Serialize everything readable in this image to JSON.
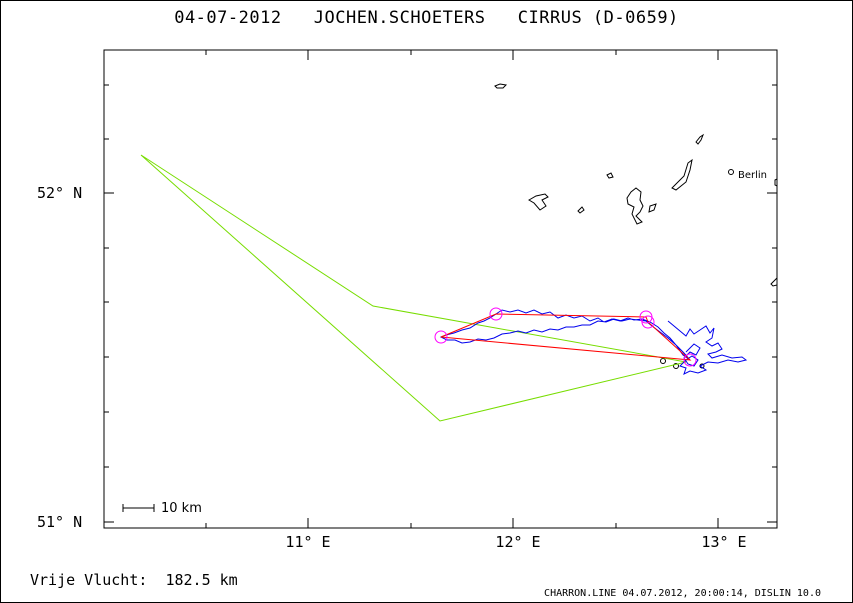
{
  "header": {
    "date": "04-07-2012",
    "pilot": "JOCHEN.SCHOETERS",
    "glider": "CIRRUS (D-0659)"
  },
  "axes": {
    "lat_labels": [
      "52° N",
      "51° N"
    ],
    "lon_labels": [
      "11° E",
      "12° E",
      "13° E"
    ]
  },
  "scale_bar": {
    "label": "10 km"
  },
  "map": {
    "cities": [
      {
        "name": "Berlin"
      }
    ],
    "colors": {
      "track": "#0000ee",
      "task": "#ff0000",
      "declared_route": "#77dd00",
      "turnpoint": "#ff00ff",
      "coast": "#000000"
    }
  },
  "footer": {
    "distance_label": "Vrije Vlucht:",
    "distance_value": "182.5 km",
    "credit": "CHARRON.LINE 04.07.2012, 20:00:14, DISLIN 10.0"
  }
}
